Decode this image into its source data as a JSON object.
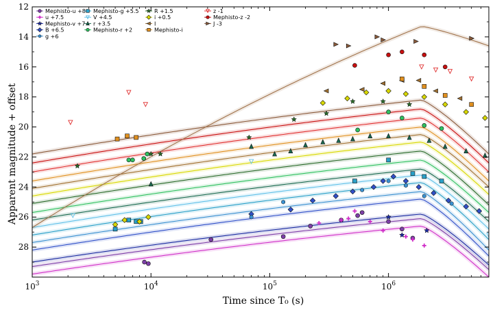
{
  "chart_data": {
    "type": "line",
    "xlabel": "Time since T₀ (s)",
    "ylabel": "Apparent magnitude + offset",
    "x_scale": "log",
    "xlim": [
      1000,
      7000000
    ],
    "ylim": [
      30,
      12
    ],
    "y_inverted": true,
    "y_ticks": [
      12,
      14,
      16,
      18,
      20,
      22,
      24,
      26,
      28
    ],
    "x_ticks": [
      {
        "value": 1000,
        "base": "10",
        "exp": "3"
      },
      {
        "value": 10000,
        "base": "10",
        "exp": "4"
      },
      {
        "value": 100000,
        "base": "10",
        "exp": "5"
      },
      {
        "value": 1000000,
        "base": "10",
        "exp": "6"
      }
    ],
    "grid": false,
    "legend_position": "top-left",
    "series": [
      {
        "name": "Mephisto-u +8",
        "color": "#7e3fa8",
        "marker": "circle",
        "model": [
          [
            1000,
            29.3
          ],
          [
            1900000,
            26.1
          ],
          [
            7000000,
            29.5
          ]
        ],
        "points": [
          [
            9500,
            29.1
          ],
          [
            8800,
            29.0
          ],
          [
            32000,
            27.5
          ],
          [
            130000,
            27.3
          ],
          [
            220000,
            26.6
          ],
          [
            400000,
            26.2
          ],
          [
            550000,
            25.9
          ],
          [
            600000,
            25.7
          ],
          [
            1000000,
            26.3
          ],
          [
            1300000,
            26.8
          ],
          [
            1600000,
            27.4
          ]
        ]
      },
      {
        "name": "u +7.5",
        "color": "#d030c8",
        "marker": "plus",
        "model": [
          [
            1000,
            29.8
          ],
          [
            1900000,
            26.6
          ],
          [
            7000000,
            30.0
          ]
        ],
        "points": [
          [
            260000,
            26.4
          ],
          [
            400000,
            26.2
          ],
          [
            460000,
            26.1
          ],
          [
            520000,
            25.6
          ],
          [
            700000,
            26.3
          ],
          [
            900000,
            26.9
          ],
          [
            1400000,
            27.3
          ],
          [
            1600000,
            27.5
          ],
          [
            2000000,
            27.9
          ]
        ]
      },
      {
        "name": "Mephisto-v +7",
        "color": "#1a2aa0",
        "marker": "star",
        "model": [
          [
            1000,
            29.0
          ],
          [
            1900000,
            25.8
          ],
          [
            7000000,
            29.2
          ]
        ],
        "points": [
          [
            1000000,
            26.0
          ],
          [
            1300000,
            27.2
          ],
          [
            2100000,
            26.9
          ]
        ]
      },
      {
        "name": "B +6.5",
        "color": "#3050c8",
        "marker": "diamond",
        "model": [
          [
            1000,
            28.2
          ],
          [
            1900000,
            24.8
          ],
          [
            7000000,
            28.6
          ]
        ],
        "points": [
          [
            70000,
            25.8
          ],
          [
            150000,
            25.5
          ],
          [
            230000,
            24.9
          ],
          [
            360000,
            24.6
          ],
          [
            500000,
            24.3
          ],
          [
            750000,
            24.0
          ],
          [
            900000,
            23.6
          ],
          [
            1100000,
            23.3
          ],
          [
            1400000,
            23.6
          ],
          [
            1800000,
            24.0
          ],
          [
            2400000,
            24.4
          ],
          [
            3200000,
            24.9
          ],
          [
            4500000,
            25.3
          ],
          [
            5800000,
            25.6
          ]
        ]
      },
      {
        "name": "g +6",
        "color": "#3a90d0",
        "marker": "hexagon",
        "model": [
          [
            1000,
            27.7
          ],
          [
            1900000,
            24.3
          ],
          [
            7000000,
            28.2
          ]
        ],
        "points": [
          [
            70000,
            26.0
          ],
          [
            130000,
            25.0
          ],
          [
            600000,
            24.2
          ],
          [
            1000000,
            23.6
          ],
          [
            1400000,
            23.9
          ],
          [
            2000000,
            24.6
          ],
          [
            3400000,
            25.1
          ]
        ]
      },
      {
        "name": "Mephisto-g +5.5",
        "color": "#2aa0c8",
        "marker": "square",
        "model": [
          [
            1000,
            27.2
          ],
          [
            1900000,
            23.7
          ],
          [
            7000000,
            27.5
          ]
        ],
        "points": [
          [
            5000,
            26.8
          ],
          [
            6500,
            26.2
          ],
          [
            7500,
            26.3
          ],
          [
            8200,
            26.3
          ],
          [
            520000,
            23.6
          ],
          [
            1000000,
            22.2
          ],
          [
            1600000,
            23.1
          ],
          [
            2000000,
            23.3
          ],
          [
            2800000,
            23.6
          ]
        ]
      },
      {
        "name": "V +4.5",
        "color": "#60c0e8",
        "marker": "triangle-down-open",
        "model": [
          [
            1000,
            26.7
          ],
          [
            1900000,
            23.2
          ],
          [
            7000000,
            26.8
          ]
        ],
        "points": [
          [
            2200,
            25.9
          ],
          [
            70000,
            22.3
          ],
          [
            7000000,
            27.2
          ]
        ]
      },
      {
        "name": "r +3.5",
        "color": "#1a6a50",
        "marker": "triangle",
        "model": [
          [
            1000,
            26.2
          ],
          [
            1900000,
            22.8
          ],
          [
            7000000,
            26.3
          ]
        ],
        "points": [
          [
            10000,
            23.8
          ],
          [
            70000,
            21.3
          ],
          [
            110000,
            21.8
          ],
          [
            150000,
            21.6
          ],
          [
            200000,
            21.2
          ],
          [
            280000,
            21.0
          ],
          [
            380000,
            20.9
          ],
          [
            500000,
            20.8
          ],
          [
            700000,
            20.6
          ],
          [
            1000000,
            20.6
          ],
          [
            1500000,
            20.7
          ],
          [
            2200000,
            20.9
          ],
          [
            3000000,
            21.3
          ],
          [
            4500000,
            21.6
          ],
          [
            6500000,
            21.9
          ]
        ]
      },
      {
        "name": "Mephisto-r +2",
        "color": "#30c060",
        "marker": "circle",
        "model": [
          [
            1000,
            25.7
          ],
          [
            1900000,
            22.2
          ],
          [
            7000000,
            25.7
          ]
        ],
        "points": [
          [
            6500,
            22.2
          ],
          [
            7000,
            22.2
          ],
          [
            8700,
            22.1
          ],
          [
            9300,
            21.8
          ],
          [
            550000,
            20.2
          ],
          [
            1000000,
            19.0
          ],
          [
            1300000,
            19.4
          ],
          [
            2000000,
            19.9
          ],
          [
            2800000,
            20.1
          ]
        ]
      },
      {
        "name": "R +1.5",
        "color": "#2a6a2a",
        "marker": "star",
        "model": [
          [
            1000,
            25.1
          ],
          [
            1900000,
            21.6
          ],
          [
            7000000,
            25.2
          ]
        ],
        "points": [
          [
            2400,
            22.6
          ],
          [
            10000,
            21.8
          ],
          [
            12000,
            21.8
          ],
          [
            67000,
            20.7
          ],
          [
            160000,
            19.5
          ],
          [
            300000,
            19.1
          ],
          [
            500000,
            18.3
          ],
          [
            900000,
            18.3
          ],
          [
            1500000,
            18.5
          ]
        ]
      },
      {
        "name": "i +0.5",
        "color": "#d8d800",
        "marker": "diamond",
        "model": [
          [
            1000,
            24.6
          ],
          [
            1900000,
            21.0
          ],
          [
            7000000,
            24.5
          ]
        ],
        "points": [
          [
            5000,
            26.5
          ],
          [
            6000,
            26.2
          ],
          [
            8000,
            26.3
          ],
          [
            9500,
            26.0
          ],
          [
            280000,
            18.4
          ],
          [
            450000,
            18.1
          ],
          [
            650000,
            17.7
          ],
          [
            1000000,
            17.6
          ],
          [
            1400000,
            17.8
          ],
          [
            2000000,
            18.0
          ],
          [
            3000000,
            18.5
          ],
          [
            4500000,
            19.0
          ],
          [
            6500000,
            19.4
          ]
        ]
      },
      {
        "name": "I",
        "color": "#a07030",
        "marker": "triangle-left",
        "model": [
          [
            1000,
            24.1
          ],
          [
            1900000,
            20.5
          ],
          [
            7000000,
            24.0
          ]
        ],
        "points": [
          [
            300000,
            17.6
          ],
          [
            600000,
            17.5
          ],
          [
            900000,
            17.1
          ],
          [
            1300000,
            16.9
          ],
          [
            1800000,
            16.9
          ],
          [
            2500000,
            17.6
          ],
          [
            4000000,
            18.1
          ]
        ]
      },
      {
        "name": "Mephisto-i",
        "color": "#e09020",
        "marker": "square",
        "model": [
          [
            1000,
            23.6
          ],
          [
            1900000,
            20.0
          ],
          [
            7000000,
            23.6
          ]
        ],
        "points": [
          [
            5200,
            20.8
          ],
          [
            6300,
            20.6
          ],
          [
            7500,
            20.7
          ],
          [
            1300000,
            16.8
          ],
          [
            2000000,
            17.3
          ],
          [
            3000000,
            17.9
          ],
          [
            5000000,
            18.5
          ]
        ]
      },
      {
        "name": "z -1",
        "color": "#e03030",
        "marker": "triangle-down-open",
        "model": [
          [
            1000,
            23.0
          ],
          [
            1900000,
            19.4
          ],
          [
            7000000,
            23.0
          ]
        ],
        "points": [
          [
            2100,
            19.7
          ],
          [
            6500,
            17.7
          ],
          [
            9000,
            18.5
          ],
          [
            1900000,
            16.0
          ],
          [
            2500000,
            16.2
          ],
          [
            3300000,
            16.3
          ],
          [
            5000000,
            16.8
          ]
        ]
      },
      {
        "name": "Mephisto-z -2",
        "color": "#c81010",
        "marker": "circle",
        "model": [
          [
            1000,
            22.4
          ],
          [
            1900000,
            18.8
          ],
          [
            7000000,
            22.4
          ]
        ],
        "points": [
          [
            520000,
            15.9
          ],
          [
            1000000,
            15.2
          ],
          [
            1300000,
            15.0
          ],
          [
            2000000,
            15.2
          ],
          [
            3000000,
            16.0
          ]
        ]
      },
      {
        "name": "J -3",
        "color": "#8a5a3a",
        "marker": "triangle-right",
        "model": [
          [
            1000,
            21.8
          ],
          [
            1900000,
            18.2
          ],
          [
            7000000,
            21.8
          ]
        ],
        "points": [
          [
            360000,
            14.5
          ],
          [
            460000,
            14.6
          ],
          [
            800000,
            14.0
          ],
          [
            900000,
            14.2
          ],
          [
            1700000,
            14.3
          ],
          [
            5000000,
            14.1
          ]
        ]
      }
    ],
    "overall_model": {
      "name": "",
      "color": "#a0724a",
      "model": [
        [
          1000,
          26.7
        ],
        [
          1900000,
          13.3
        ],
        [
          7000000,
          14.6
        ]
      ]
    }
  }
}
